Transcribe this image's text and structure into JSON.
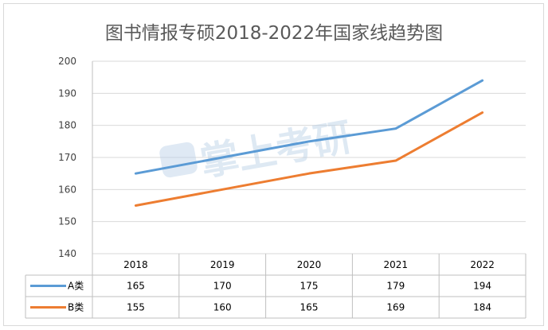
{
  "chart_data": {
    "type": "line",
    "title": "图书情报专硕2018-2022年国家线趋势图",
    "categories": [
      "2018",
      "2019",
      "2020",
      "2021",
      "2022"
    ],
    "series": [
      {
        "name": "A类",
        "color": "#5b9bd5",
        "values": [
          165,
          170,
          175,
          179,
          194
        ]
      },
      {
        "name": "B类",
        "color": "#ed7d31",
        "values": [
          155,
          160,
          165,
          169,
          184
        ]
      }
    ],
    "yticks": [
      140,
      150,
      160,
      170,
      180,
      190,
      200
    ],
    "ylim": [
      140,
      200
    ],
    "grid": true,
    "legend": "data-table"
  },
  "watermark": "掌上考研"
}
